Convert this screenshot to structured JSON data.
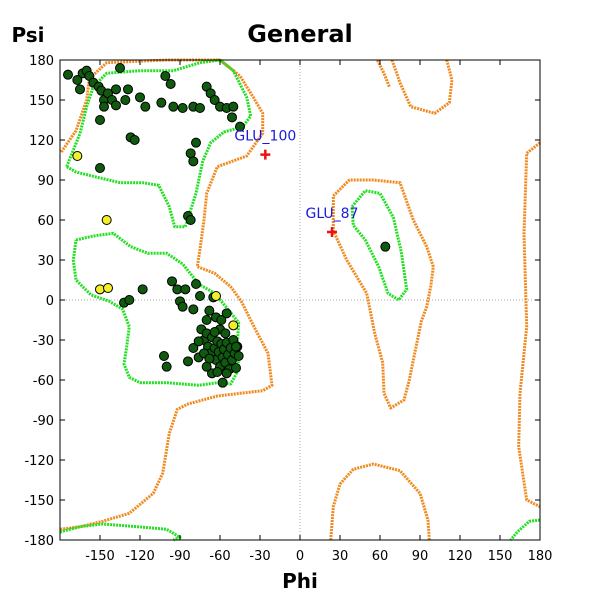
{
  "chart_data": {
    "type": "scatter",
    "title": "General",
    "xlabel": "Phi",
    "ylabel": "Psi",
    "xlim": [
      -180,
      180
    ],
    "ylim": [
      -180,
      180
    ],
    "xticks": [
      -150,
      -120,
      -90,
      -60,
      -30,
      0,
      30,
      60,
      90,
      120,
      150,
      180
    ],
    "yticks": [
      180,
      150,
      120,
      90,
      60,
      30,
      0,
      -30,
      -60,
      -90,
      -120,
      -150,
      -180
    ],
    "zero_lines": true,
    "colors": {
      "favoured_contour": "#22e022",
      "allowed_contour": "#f08a1e",
      "favoured_point": "#0f5a0f",
      "allowed_point": "#f2ee2a",
      "outlier_marker": "#ee1111",
      "outlier_label": "#1a1adc"
    },
    "favoured_points": [
      [
        -174,
        169
      ],
      [
        -167,
        165
      ],
      [
        -165,
        158
      ],
      [
        -163,
        170
      ],
      [
        -160,
        172
      ],
      [
        -158,
        168
      ],
      [
        -155,
        163
      ],
      [
        -151,
        160
      ],
      [
        -149,
        157
      ],
      [
        -147,
        150
      ],
      [
        -147,
        145
      ],
      [
        -144,
        155
      ],
      [
        -141,
        150
      ],
      [
        -138,
        146
      ],
      [
        -138,
        158
      ],
      [
        -135,
        174
      ],
      [
        -131,
        150
      ],
      [
        -129,
        158
      ],
      [
        -127,
        122
      ],
      [
        -124,
        120
      ],
      [
        -120,
        152
      ],
      [
        -116,
        145
      ],
      [
        -104,
        148
      ],
      [
        -101,
        168
      ],
      [
        -97,
        162
      ],
      [
        -95,
        145
      ],
      [
        -88,
        144
      ],
      [
        -80,
        145
      ],
      [
        -75,
        144
      ],
      [
        -70,
        160
      ],
      [
        -67,
        155
      ],
      [
        -64,
        150
      ],
      [
        -60,
        145
      ],
      [
        -55,
        144
      ],
      [
        -51,
        137
      ],
      [
        -50,
        145
      ],
      [
        -45,
        130
      ],
      [
        -82,
        110
      ],
      [
        -80,
        104
      ],
      [
        -78,
        118
      ],
      [
        -84,
        63
      ],
      [
        -82,
        60
      ],
      [
        -150,
        135
      ],
      [
        -150,
        99
      ],
      [
        -132,
        -2
      ],
      [
        -128,
        0
      ],
      [
        -118,
        8
      ],
      [
        -96,
        14
      ],
      [
        -92,
        8
      ],
      [
        -90,
        -1
      ],
      [
        -88,
        -5
      ],
      [
        -86,
        8
      ],
      [
        -80,
        -7
      ],
      [
        -78,
        12
      ],
      [
        -75,
        3
      ],
      [
        -70,
        -15
      ],
      [
        -68,
        -8
      ],
      [
        -65,
        2
      ],
      [
        -63,
        -13
      ],
      [
        -60,
        -22
      ],
      [
        -59,
        -15
      ],
      [
        -56,
        -25
      ],
      [
        -55,
        -10
      ],
      [
        -74,
        -22
      ],
      [
        -72,
        -30
      ],
      [
        -70,
        -25
      ],
      [
        -69,
        -35
      ],
      [
        -67,
        -40
      ],
      [
        -66,
        -28
      ],
      [
        -64,
        -36
      ],
      [
        -63,
        -45
      ],
      [
        -62,
        -31
      ],
      [
        -61,
        -39
      ],
      [
        -60,
        -50
      ],
      [
        -59,
        -33
      ],
      [
        -58,
        -43
      ],
      [
        -57,
        -37
      ],
      [
        -56,
        -47
      ],
      [
        -55,
        -32
      ],
      [
        -54,
        -41
      ],
      [
        -53,
        -52
      ],
      [
        -52,
        -36
      ],
      [
        -51,
        -45
      ],
      [
        -50,
        -30
      ],
      [
        -49,
        -40
      ],
      [
        -48,
        -51
      ],
      [
        -47,
        -35
      ],
      [
        -46,
        -42
      ],
      [
        -66,
        -55
      ],
      [
        -76,
        -43
      ],
      [
        -70,
        -50
      ],
      [
        -72,
        -40
      ],
      [
        -58,
        -62
      ],
      [
        -102,
        -42
      ],
      [
        -100,
        -50
      ],
      [
        -84,
        -46
      ],
      [
        -68,
        -44
      ],
      [
        -62,
        -54
      ],
      [
        -55,
        -55
      ],
      [
        -48,
        -35
      ],
      [
        -80,
        -36
      ],
      [
        -64,
        -24
      ],
      [
        -76,
        -31
      ],
      [
        64,
        40
      ]
    ],
    "allowed_points": [
      [
        -167,
        108
      ],
      [
        -145,
        60
      ],
      [
        -150,
        8
      ],
      [
        -144,
        9
      ],
      [
        -63,
        3
      ],
      [
        -50,
        -19
      ]
    ],
    "outliers": [
      {
        "phi": -26,
        "psi": 109,
        "label": "GLU_100"
      },
      {
        "phi": 24,
        "psi": 51,
        "label": "GLU_87"
      }
    ],
    "favoured_contours": [
      [
        [
          -175,
          100
        ],
        [
          -165,
          125
        ],
        [
          -160,
          145
        ],
        [
          -155,
          160
        ],
        [
          -145,
          170
        ],
        [
          -120,
          172
        ],
        [
          -95,
          172
        ],
        [
          -75,
          178
        ],
        [
          -60,
          180
        ],
        [
          -50,
          172
        ],
        [
          -40,
          152
        ],
        [
          -37,
          138
        ],
        [
          -43,
          130
        ],
        [
          -57,
          126
        ],
        [
          -67,
          118
        ],
        [
          -73,
          104
        ],
        [
          -78,
          80
        ],
        [
          -86,
          55
        ],
        [
          -94,
          55
        ],
        [
          -98,
          70
        ],
        [
          -106,
          86
        ],
        [
          -118,
          88
        ],
        [
          -135,
          88
        ],
        [
          -152,
          92
        ],
        [
          -168,
          96
        ],
        [
          -175,
          100
        ]
      ],
      [
        [
          -168,
          45
        ],
        [
          -155,
          48
        ],
        [
          -140,
          50
        ],
        [
          -127,
          40
        ],
        [
          -114,
          35
        ],
        [
          -100,
          35
        ],
        [
          -88,
          27
        ],
        [
          -76,
          12
        ],
        [
          -64,
          5
        ],
        [
          -54,
          -7
        ],
        [
          -46,
          -17
        ],
        [
          -47,
          -33
        ],
        [
          -46,
          -52
        ],
        [
          -52,
          -63
        ],
        [
          -62,
          -62
        ],
        [
          -76,
          -64
        ],
        [
          -100,
          -62
        ],
        [
          -120,
          -62
        ],
        [
          -128,
          -58
        ],
        [
          -132,
          -48
        ],
        [
          -130,
          -35
        ],
        [
          -128,
          -20
        ],
        [
          -133,
          -7
        ],
        [
          -143,
          -1
        ],
        [
          -157,
          4
        ],
        [
          -168,
          15
        ],
        [
          -170,
          30
        ],
        [
          -168,
          45
        ]
      ],
      [
        [
          39,
          70
        ],
        [
          49,
          82
        ],
        [
          60,
          80
        ],
        [
          70,
          62
        ],
        [
          76,
          36
        ],
        [
          80,
          8
        ],
        [
          74,
          0
        ],
        [
          66,
          5
        ],
        [
          59,
          25
        ],
        [
          49,
          45
        ],
        [
          40,
          56
        ],
        [
          39,
          70
        ]
      ],
      [
        [
          -180,
          -174
        ],
        [
          -165,
          -170
        ],
        [
          -148,
          -168
        ],
        [
          -122,
          -170
        ],
        [
          -100,
          -172
        ],
        [
          -90,
          -178
        ],
        [
          -95,
          -180
        ]
      ],
      [
        [
          180,
          -165
        ],
        [
          172,
          -166
        ],
        [
          163,
          -174
        ],
        [
          158,
          -180
        ]
      ]
    ],
    "allowed_contours": [
      [
        [
          -179,
          111
        ],
        [
          -168,
          127
        ],
        [
          -160,
          150
        ],
        [
          -158,
          166
        ],
        [
          -145,
          178
        ],
        [
          -100,
          180
        ],
        [
          -60,
          180
        ],
        [
          -45,
          168
        ],
        [
          -35,
          152
        ],
        [
          -28,
          140
        ],
        [
          -28,
          125
        ],
        [
          -40,
          108
        ],
        [
          -62,
          100
        ],
        [
          -70,
          80
        ],
        [
          -72,
          60
        ],
        [
          -75,
          38
        ],
        [
          -77,
          25
        ],
        [
          -64,
          20
        ],
        [
          -52,
          10
        ],
        [
          -44,
          -1
        ],
        [
          -34,
          -21
        ],
        [
          -24,
          -40
        ],
        [
          -21,
          -64
        ],
        [
          -28,
          -68
        ],
        [
          -62,
          -72
        ],
        [
          -84,
          -78
        ],
        [
          -92,
          -82
        ],
        [
          -98,
          -100
        ],
        [
          -103,
          -130
        ],
        [
          -110,
          -145
        ],
        [
          -128,
          -160
        ],
        [
          -148,
          -166
        ],
        [
          -165,
          -170
        ],
        [
          -180,
          -172
        ]
      ],
      [
        [
          180,
          118
        ],
        [
          170,
          110
        ],
        [
          168,
          50
        ],
        [
          170,
          -20
        ],
        [
          165,
          -70
        ],
        [
          164,
          -110
        ],
        [
          170,
          -150
        ],
        [
          180,
          -155
        ]
      ],
      [
        [
          67,
          160
        ],
        [
          63,
          170
        ],
        [
          58,
          180
        ]
      ],
      [
        [
          69,
          180
        ],
        [
          75,
          163
        ],
        [
          83,
          145
        ],
        [
          101,
          140
        ],
        [
          112,
          148
        ],
        [
          114,
          165
        ],
        [
          110,
          180
        ]
      ],
      [
        [
          25,
          78
        ],
        [
          37,
          90
        ],
        [
          55,
          90
        ],
        [
          75,
          88
        ],
        [
          85,
          60
        ],
        [
          95,
          40
        ],
        [
          100,
          25
        ],
        [
          98,
          10
        ],
        [
          95,
          -5
        ],
        [
          91,
          -16
        ],
        [
          86,
          -40
        ],
        [
          82,
          -60
        ],
        [
          78,
          -75
        ],
        [
          68,
          -81
        ],
        [
          63,
          -70
        ],
        [
          62,
          -47
        ],
        [
          56,
          -25
        ],
        [
          50,
          5
        ],
        [
          35,
          30
        ],
        [
          25,
          52
        ],
        [
          25,
          78
        ]
      ],
      [
        [
          23,
          -180
        ],
        [
          25,
          -155
        ],
        [
          30,
          -138
        ],
        [
          40,
          -127
        ],
        [
          55,
          -123
        ],
        [
          75,
          -128
        ],
        [
          90,
          -145
        ],
        [
          96,
          -165
        ],
        [
          97,
          -180
        ]
      ]
    ]
  }
}
